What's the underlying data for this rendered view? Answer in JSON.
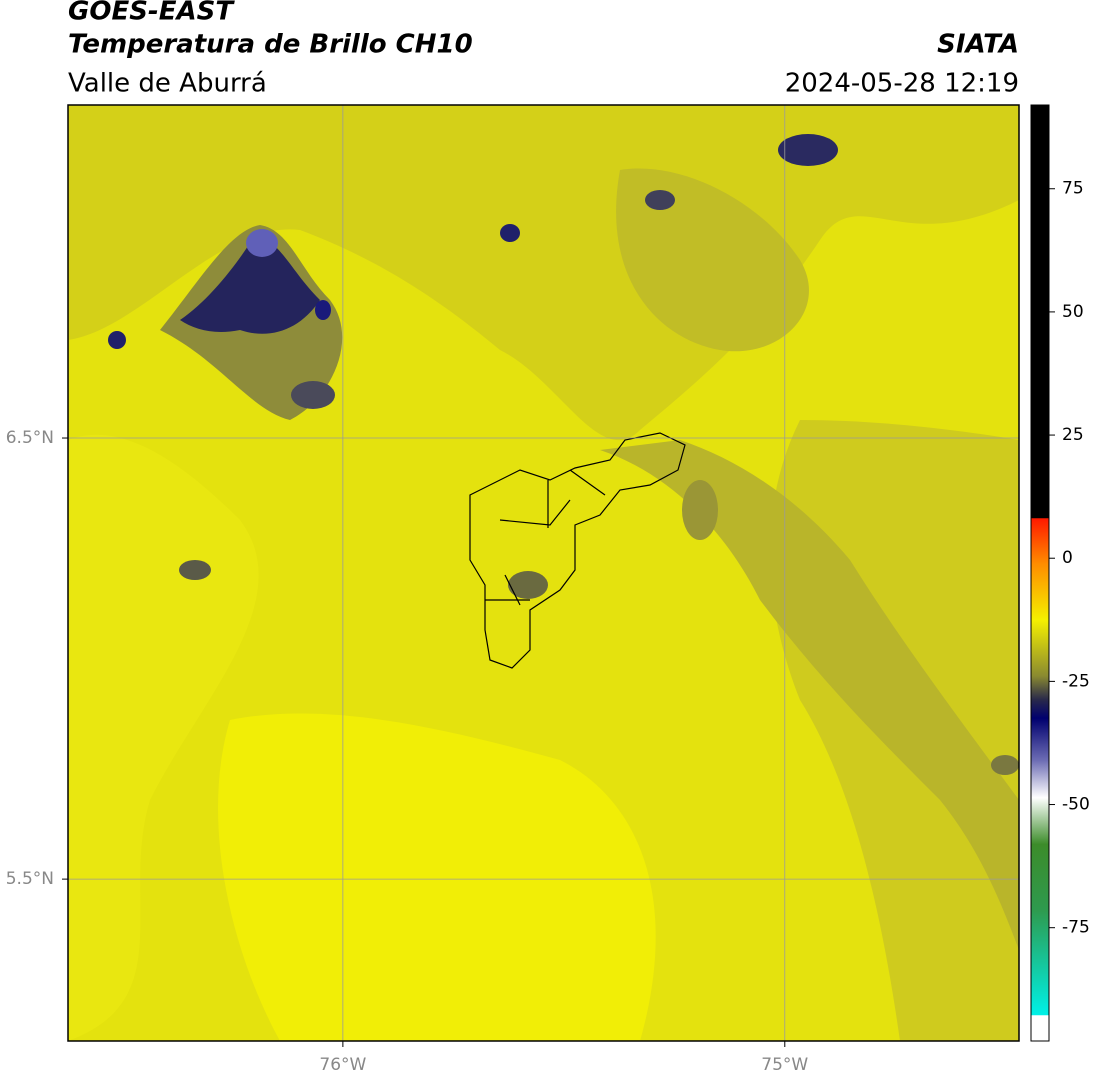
{
  "header": {
    "title": "GOES-EAST",
    "subtitle": "Temperatura de Brillo CH10",
    "region": "Valle de Aburrá",
    "source": "SIATA",
    "datetime": "2024-05-28 12:19"
  },
  "map": {
    "xlim": [
      -76.622,
      -74.47
    ],
    "ylim": [
      5.133,
      7.255
    ],
    "xticks": [
      {
        "value": -76,
        "label": "76°W"
      },
      {
        "value": -75,
        "label": "75°W"
      }
    ],
    "yticks": [
      {
        "value": 6.5,
        "label": "6.5°N"
      },
      {
        "value": 5.5,
        "label": "5.5°N"
      }
    ],
    "grid": true
  },
  "colorbar": {
    "lim": [
      -98,
      92
    ],
    "ticks": [
      75,
      50,
      25,
      0,
      -25,
      -50,
      -75
    ]
  }
}
